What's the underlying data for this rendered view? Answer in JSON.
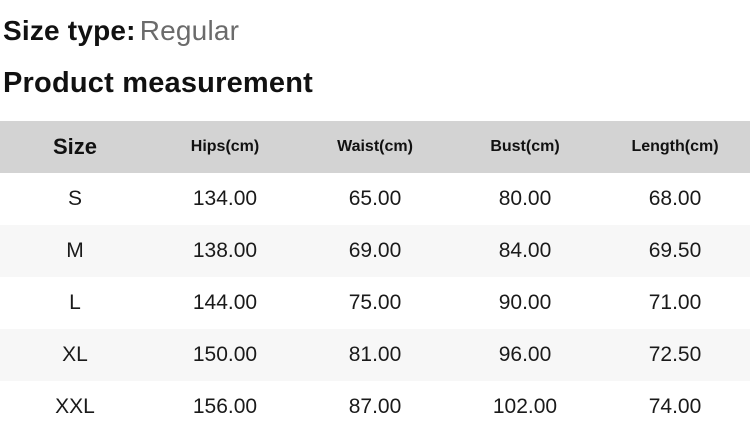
{
  "size_type": {
    "label": "Size type:",
    "value": "Regular"
  },
  "section": {
    "title": "Product measurement"
  },
  "table": {
    "columns": [
      "Size",
      "Hips(cm)",
      "Waist(cm)",
      "Bust(cm)",
      "Length(cm)"
    ],
    "rows": [
      [
        "S",
        "134.00",
        "65.00",
        "80.00",
        "68.00"
      ],
      [
        "M",
        "138.00",
        "69.00",
        "84.00",
        "69.50"
      ],
      [
        "L",
        "144.00",
        "75.00",
        "90.00",
        "71.00"
      ],
      [
        "XL",
        "150.00",
        "81.00",
        "96.00",
        "72.50"
      ],
      [
        "XXL",
        "156.00",
        "87.00",
        "102.00",
        "74.00"
      ]
    ]
  },
  "colors": {
    "header_background": "#d3d3d3",
    "row_stripe_background": "#f7f7f7",
    "primary_text": "#111111",
    "secondary_text": "#6b6b6b"
  }
}
